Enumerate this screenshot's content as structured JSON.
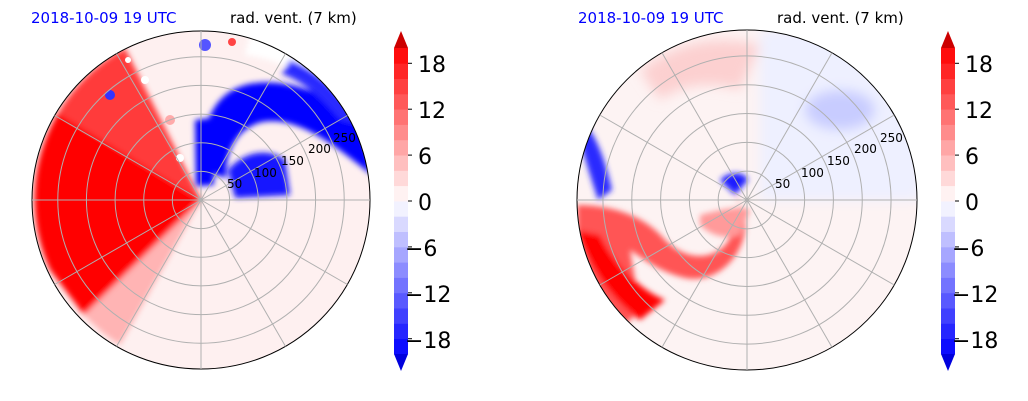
{
  "colors": {
    "time_label": "#0000ff",
    "positive": "#ff0000",
    "negative": "#0000ff",
    "neutral": "#fef0f0",
    "grid": "#b0b0b0"
  },
  "chart_data": [
    {
      "type": "heatmap",
      "projection": "polar",
      "timestamp": "2018-10-09 19 UTC",
      "title": "rad. vent. (7 km)",
      "radial_ticks": [
        "50",
        "100",
        "150",
        "200",
        "250"
      ],
      "radial_tick_values": [
        50,
        100,
        150,
        200,
        250
      ],
      "r_max": 295,
      "grid": true,
      "colorbar": {
        "ticks": [
          "18",
          "12",
          "6",
          "0",
          "−6",
          "−12",
          "−18"
        ],
        "tick_values": [
          18,
          12,
          6,
          0,
          -6,
          -12,
          -18
        ],
        "range": [
          -20,
          20
        ],
        "extend": "both",
        "colormap": "bwr"
      },
      "regions": [
        {
          "sign": "positive",
          "theta_deg": [
            145,
            205
          ],
          "r": [
            0,
            295
          ],
          "description": "outbound"
        },
        {
          "sign": "negative",
          "theta_deg": [
            15,
            95
          ],
          "r": [
            20,
            270
          ],
          "description": "inbound"
        }
      ]
    },
    {
      "type": "heatmap",
      "projection": "polar",
      "timestamp": "2018-10-09 19 UTC",
      "title": "rad. vent. (7 km)",
      "radial_ticks": [
        "50",
        "100",
        "150",
        "200",
        "250"
      ],
      "radial_tick_values": [
        50,
        100,
        150,
        200,
        250
      ],
      "r_max": 295,
      "grid": true,
      "colorbar": {
        "ticks": [
          "18",
          "12",
          "6",
          "0",
          "−6",
          "−12",
          "−18"
        ],
        "tick_values": [
          18,
          12,
          6,
          0,
          -6,
          -12,
          -18
        ],
        "range": [
          -20,
          20
        ],
        "extend": "both",
        "colormap": "bwr"
      },
      "regions": [
        {
          "sign": "positive",
          "theta_deg": [
            195,
            245
          ],
          "r": [
            120,
            295
          ],
          "description": "outbound"
        },
        {
          "sign": "negative",
          "theta_deg": [
            160,
            185
          ],
          "r": [
            180,
            290
          ],
          "description": "inbound"
        }
      ]
    }
  ]
}
